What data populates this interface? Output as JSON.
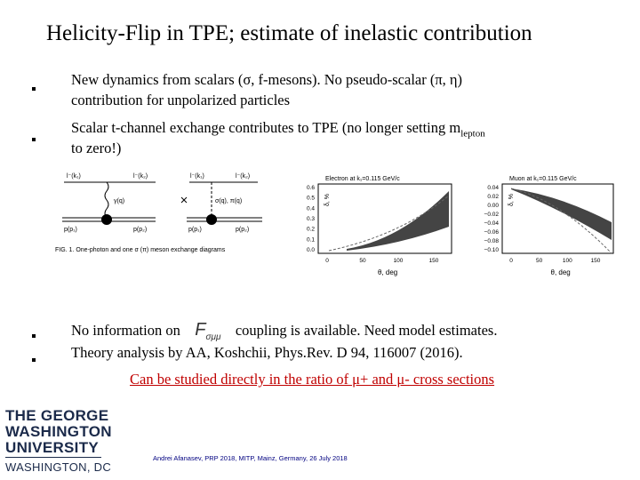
{
  "title": "Helicity-Flip in TPE; estimate of inelastic contribution",
  "bullets": [
    {
      "line1": "New dynamics from scalars (σ, f-mesons). No pseudo-scalar (π, η)",
      "line2": "contribution for unpolarized particles"
    },
    {
      "line1": "Scalar t-channel exchange contributes to TPE (no longer setting m",
      "sub": "lepton",
      "line2": "to zero!)"
    },
    {
      "before": "No information on",
      "symbol": "F",
      "subscript": "σμμ",
      "after": "coupling is available. Need model estimates."
    },
    {
      "text": "Theory analysis by AA, Koshchii, Phys.Rev. D 94, 116007 (2016)."
    }
  ],
  "highlight": "Can be studied directly in the ratio of μ+ and μ- cross sections",
  "figure": {
    "labels": [
      "l⁻(k₁)",
      "l⁻(k₂)",
      "γ(q)",
      "p(p₁)",
      "p(p₂)",
      "l⁻(k₁)",
      "l⁻(k₂)",
      "σ(q), π(q)",
      "p(p₁)",
      "p(p₂)"
    ],
    "caption": "FIG. 1. One-photon and one σ (π) meson exchange diagrams"
  },
  "plots": [
    {
      "title": "Electron at k₁=0.115 GeV/c",
      "ylabel": "δ, %",
      "xlabel": "θ, deg",
      "yticks": [
        "0.6",
        "0.5",
        "0.4",
        "0.3",
        "0.2",
        "0.1",
        "0.0"
      ],
      "xticks": [
        "0",
        "50",
        "100",
        "150"
      ]
    },
    {
      "title": "Muon at k₁=0.115 GeV/c",
      "ylabel": "δ, %",
      "xlabel": "θ, deg",
      "yticks": [
        "0.04",
        "0.02",
        "0.00",
        "−0.02",
        "−0.04",
        "−0.06",
        "−0.08",
        "−0.10"
      ],
      "xticks": [
        "0",
        "50",
        "100",
        "150"
      ]
    }
  ],
  "logo": [
    "THE GEORGE",
    "WASHINGTON",
    "UNIVERSITY",
    "WASHINGTON, DC"
  ],
  "footer": "Andrei Afanasev, PRP 2018, MITP, Mainz, Germany, 26 July 2018"
}
